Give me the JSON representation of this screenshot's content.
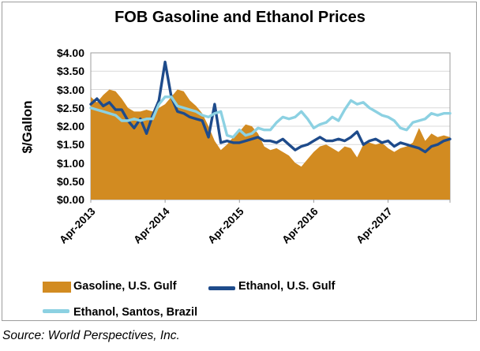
{
  "title": "FOB Gasoline and Ethanol Prices",
  "y_axis": {
    "label": "$/Gallon",
    "ticks": [
      "$4.00",
      "$3.50",
      "$3.00",
      "$2.50",
      "$2.00",
      "$1.50",
      "$1.00",
      "$0.50",
      "$0.00"
    ]
  },
  "x_axis": {
    "ticks": [
      "Apr-2013",
      "Apr-2014",
      "Apr-2015",
      "Apr-2016",
      "Apr-2017"
    ]
  },
  "legend": [
    {
      "label": "Gasoline, U.S. Gulf",
      "swatch": "area"
    },
    {
      "label": "Ethanol, U.S. Gulf",
      "swatch": "line"
    },
    {
      "label": "Ethanol, Santos, Brazil",
      "swatch": "line"
    }
  ],
  "source": "Source: World Perspectives, Inc.",
  "chart_data": {
    "type": "area",
    "title": "FOB Gasoline and Ethanol Prices",
    "xlabel": "",
    "ylabel": "$/Gallon",
    "ylim": [
      0,
      4
    ],
    "ytick_step": 0.5,
    "grid": "horizontal",
    "legend_position": "bottom",
    "x_tick_positions": [
      0,
      12,
      24,
      36,
      48
    ],
    "x_tick_labels": [
      "Apr-2013",
      "Apr-2014",
      "Apr-2015",
      "Apr-2016",
      "Apr-2017"
    ],
    "months": [
      "Apr-2013",
      "May-2013",
      "Jun-2013",
      "Jul-2013",
      "Aug-2013",
      "Sep-2013",
      "Oct-2013",
      "Nov-2013",
      "Dec-2013",
      "Jan-2014",
      "Feb-2014",
      "Mar-2014",
      "Apr-2014",
      "May-2014",
      "Jun-2014",
      "Jul-2014",
      "Aug-2014",
      "Sep-2014",
      "Oct-2014",
      "Nov-2014",
      "Dec-2014",
      "Jan-2015",
      "Feb-2015",
      "Mar-2015",
      "Apr-2015",
      "May-2015",
      "Jun-2015",
      "Jul-2015",
      "Aug-2015",
      "Sep-2015",
      "Oct-2015",
      "Nov-2015",
      "Dec-2015",
      "Jan-2016",
      "Feb-2016",
      "Mar-2016",
      "Apr-2016",
      "May-2016",
      "Jun-2016",
      "Jul-2016",
      "Aug-2016",
      "Sep-2016",
      "Oct-2016",
      "Nov-2016",
      "Dec-2016",
      "Jan-2017",
      "Feb-2017",
      "Mar-2017",
      "Apr-2017",
      "May-2017",
      "Jun-2017",
      "Jul-2017",
      "Aug-2017",
      "Sep-2017",
      "Oct-2017",
      "Nov-2017",
      "Dec-2017",
      "Jan-2018",
      "Feb-2018"
    ],
    "series": [
      {
        "name": "Gasoline, U.S. Gulf",
        "type": "area",
        "color": "#D28B21",
        "values": [
          2.8,
          2.65,
          2.85,
          3.0,
          2.95,
          2.75,
          2.5,
          2.4,
          2.4,
          2.45,
          2.4,
          2.5,
          2.6,
          2.8,
          3.0,
          2.95,
          2.7,
          2.55,
          2.35,
          2.0,
          1.6,
          1.35,
          1.5,
          1.7,
          1.85,
          2.05,
          2.0,
          1.8,
          1.45,
          1.35,
          1.4,
          1.3,
          1.2,
          1.0,
          0.9,
          1.1,
          1.3,
          1.45,
          1.5,
          1.4,
          1.3,
          1.45,
          1.4,
          1.15,
          1.5,
          1.55,
          1.5,
          1.55,
          1.4,
          1.3,
          1.4,
          1.45,
          1.55,
          1.95,
          1.6,
          1.8,
          1.7,
          1.75,
          1.7
        ]
      },
      {
        "name": "Ethanol, U.S. Gulf",
        "type": "line",
        "color": "#1E4B8B",
        "values": [
          2.6,
          2.75,
          2.55,
          2.65,
          2.45,
          2.45,
          2.15,
          1.95,
          2.2,
          1.8,
          2.3,
          2.7,
          3.75,
          2.8,
          2.4,
          2.35,
          2.25,
          2.2,
          2.15,
          1.7,
          2.6,
          1.55,
          1.6,
          1.55,
          1.55,
          1.6,
          1.65,
          1.7,
          1.6,
          1.6,
          1.55,
          1.65,
          1.5,
          1.35,
          1.45,
          1.5,
          1.6,
          1.7,
          1.6,
          1.6,
          1.65,
          1.6,
          1.7,
          1.85,
          1.5,
          1.6,
          1.65,
          1.55,
          1.6,
          1.45,
          1.55,
          1.5,
          1.45,
          1.4,
          1.3,
          1.45,
          1.5,
          1.6,
          1.65
        ]
      },
      {
        "name": "Ethanol, Santos, Brazil",
        "type": "line",
        "color": "#8CD1E2",
        "values": [
          2.5,
          2.45,
          2.4,
          2.35,
          2.3,
          2.15,
          2.15,
          2.2,
          2.15,
          2.2,
          2.2,
          2.6,
          2.8,
          2.8,
          2.55,
          2.5,
          2.45,
          2.4,
          2.3,
          2.25,
          2.35,
          2.4,
          1.75,
          1.7,
          1.9,
          1.75,
          1.8,
          1.95,
          1.9,
          1.9,
          2.1,
          2.25,
          2.2,
          2.25,
          2.4,
          2.2,
          1.95,
          2.05,
          2.1,
          2.25,
          2.15,
          2.45,
          2.7,
          2.6,
          2.65,
          2.5,
          2.4,
          2.3,
          2.25,
          2.15,
          1.95,
          1.9,
          2.1,
          2.15,
          2.2,
          2.35,
          2.3,
          2.35,
          2.35
        ]
      }
    ]
  }
}
